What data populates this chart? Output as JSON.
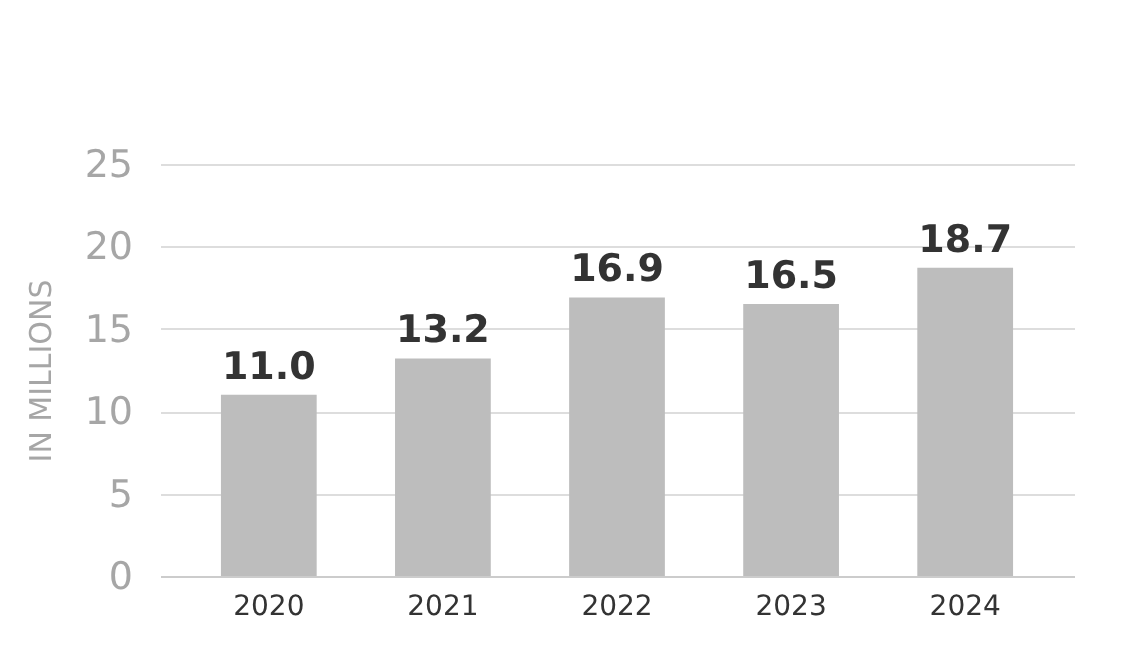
{
  "chart_data": {
    "type": "bar",
    "ylabel": "IN MILLIONS",
    "categories": [
      "2020",
      "2021",
      "2022",
      "2023",
      "2024"
    ],
    "values": [
      11.0,
      13.2,
      16.9,
      16.5,
      18.7
    ],
    "color": "#bdbdbd",
    "ylim": [
      0,
      25
    ],
    "yticks": [
      0,
      5,
      10,
      15,
      20,
      25
    ],
    "value_labels": [
      "11.0",
      "13.2",
      "16.9",
      "16.5",
      "18.7"
    ],
    "grid": "y"
  }
}
